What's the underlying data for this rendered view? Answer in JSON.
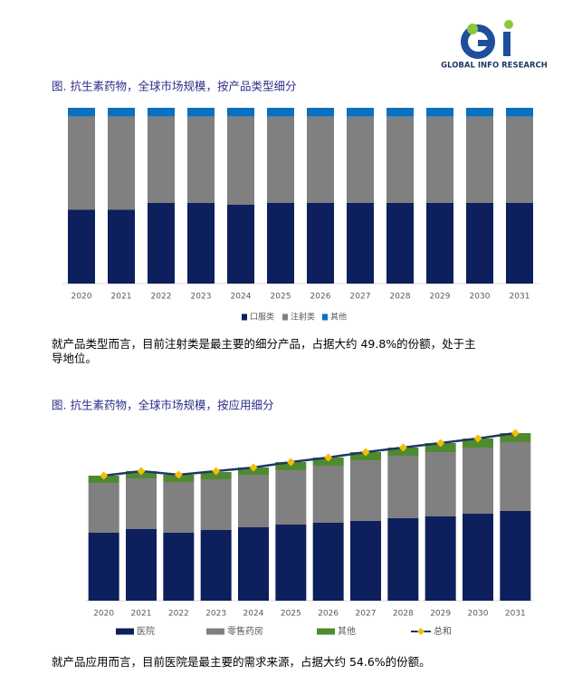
{
  "logo": {
    "text": "GLOBAL INFO RESEARCH"
  },
  "chart_data": [
    {
      "type": "bar",
      "stacked": true,
      "title": "图. 抗生素药物，全球市场规模，按产品类型细分",
      "categories": [
        "2020",
        "2021",
        "2022",
        "2023",
        "2024",
        "2025",
        "2026",
        "2027",
        "2028",
        "2029",
        "2030",
        "2031"
      ],
      "ylim": [
        0,
        100
      ],
      "series": [
        {
          "name": "口服类",
          "color": "#0d1f5c",
          "values": [
            42,
            42,
            46,
            46,
            45,
            46,
            46,
            46,
            46,
            46,
            46,
            46
          ]
        },
        {
          "name": "注射类",
          "color": "#808080",
          "values": [
            53,
            53,
            49,
            49,
            50,
            49,
            49,
            49,
            49,
            49,
            49,
            49
          ]
        },
        {
          "name": "其他",
          "color": "#0a70c0",
          "values": [
            5,
            5,
            5,
            5,
            5,
            5,
            5,
            5,
            5,
            5,
            5,
            5
          ]
        }
      ]
    },
    {
      "type": "bar",
      "stacked": true,
      "title": "图. 抗生素药物，全球市场规模，按应用细分",
      "categories": [
        "2020",
        "2021",
        "2022",
        "2023",
        "2024",
        "2025",
        "2026",
        "2027",
        "2028",
        "2029",
        "2030",
        "2031"
      ],
      "ylim": [
        0,
        200
      ],
      "series": [
        {
          "name": "医院",
          "color": "#0d1f5c",
          "values": [
            75,
            79,
            75,
            78,
            81,
            84,
            86,
            88,
            91,
            93,
            96,
            99
          ]
        },
        {
          "name": "零售药房",
          "color": "#808080",
          "values": [
            55,
            56,
            56,
            56,
            58,
            60,
            63,
            67,
            69,
            71,
            73,
            76
          ]
        },
        {
          "name": "其他",
          "color": "#4f8a2f",
          "values": [
            8,
            8,
            8,
            8,
            8,
            9,
            9,
            9,
            9,
            10,
            10,
            10
          ]
        },
        {
          "name": "总和",
          "type": "line",
          "color": "#1f3864",
          "marker_color": "#f0c000",
          "values": [
            138,
            143,
            139,
            143,
            147,
            153,
            158,
            164,
            169,
            174,
            179,
            185
          ]
        }
      ]
    }
  ],
  "paragraphs": [
    "就产品类型而言，目前注射类是最主要的细分产品，占据大约 49.8%的份额，处于主导地位。",
    "就产品应用而言，目前医院是最主要的需求来源，占据大约 54.6%的份额。"
  ]
}
